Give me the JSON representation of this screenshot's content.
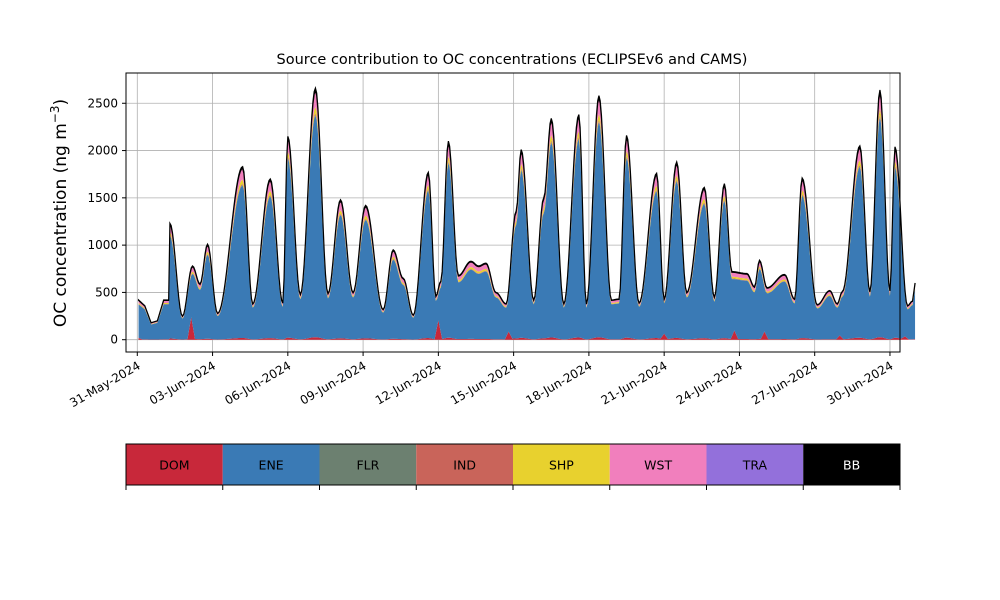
{
  "chart_data": {
    "type": "area",
    "title": "Source contribution to OC concentrations (ECLIPSEv6 and CAMS)",
    "ylabel": "OC concentration (ng m⁻³)",
    "ylabel_parts": {
      "main": "OC concentration (ng m",
      "sup": "−3",
      "close": ")"
    },
    "xlabel": "",
    "ylim": [
      -130,
      2820
    ],
    "xlim_days": [
      -0.45,
      30.4
    ],
    "yticks": [
      0,
      500,
      1000,
      1500,
      2000,
      2500
    ],
    "ytick_labels": [
      "0",
      "500",
      "1000",
      "1500",
      "2000",
      "2500"
    ],
    "xticks_days": [
      0,
      3,
      6,
      9,
      12,
      15,
      18,
      21,
      24,
      27,
      30
    ],
    "xtick_labels": [
      "31-May-2024",
      "03-Jun-2024",
      "06-Jun-2024",
      "09-Jun-2024",
      "12-Jun-2024",
      "15-Jun-2024",
      "18-Jun-2024",
      "21-Jun-2024",
      "24-Jun-2024",
      "27-Jun-2024",
      "30-Jun-2024"
    ],
    "x_unit": "days since 31-May-2024 00:00",
    "grid": true,
    "peaks": [
      [
        1.3,
        1230
      ],
      [
        1.8,
        250
      ],
      [
        2.2,
        780
      ],
      [
        2.5,
        590
      ],
      [
        2.8,
        1010
      ],
      [
        3.2,
        280
      ],
      [
        4.2,
        1830
      ],
      [
        4.6,
        380
      ],
      [
        5.3,
        1700
      ],
      [
        5.8,
        390
      ],
      [
        6.0,
        2150
      ],
      [
        6.5,
        480
      ],
      [
        7.1,
        2660
      ],
      [
        7.6,
        490
      ],
      [
        8.1,
        1480
      ],
      [
        8.6,
        500
      ],
      [
        9.1,
        1420
      ],
      [
        9.8,
        320
      ],
      [
        10.2,
        950
      ],
      [
        10.6,
        650
      ],
      [
        11.0,
        260
      ],
      [
        11.6,
        1770
      ],
      [
        11.9,
        460
      ],
      [
        12.1,
        620
      ],
      [
        12.4,
        2100
      ],
      [
        12.8,
        680
      ],
      [
        13.3,
        830
      ],
      [
        13.6,
        780
      ],
      [
        13.9,
        810
      ],
      [
        14.3,
        500
      ],
      [
        14.7,
        380
      ],
      [
        15.1,
        1360
      ],
      [
        15.3,
        2010
      ],
      [
        15.8,
        420
      ],
      [
        16.2,
        1500
      ],
      [
        16.5,
        2340
      ],
      [
        17.0,
        380
      ],
      [
        17.6,
        2380
      ],
      [
        17.9,
        380
      ],
      [
        18.4,
        2580
      ],
      [
        18.9,
        420
      ],
      [
        19.2,
        430
      ],
      [
        19.5,
        2160
      ],
      [
        20.0,
        390
      ],
      [
        20.7,
        1760
      ],
      [
        21.0,
        430
      ],
      [
        21.5,
        1880
      ],
      [
        21.9,
        500
      ],
      [
        22.6,
        1610
      ],
      [
        23.0,
        450
      ],
      [
        23.4,
        1650
      ],
      [
        23.7,
        720
      ],
      [
        24.3,
        700
      ],
      [
        24.6,
        560
      ],
      [
        24.8,
        840
      ],
      [
        25.1,
        550
      ],
      [
        25.8,
        690
      ],
      [
        26.2,
        430
      ],
      [
        26.5,
        1710
      ],
      [
        27.1,
        370
      ],
      [
        27.6,
        520
      ],
      [
        27.9,
        380
      ],
      [
        28.1,
        510
      ],
      [
        28.8,
        2050
      ],
      [
        29.2,
        510
      ],
      [
        29.6,
        2640
      ],
      [
        30.0,
        520
      ],
      [
        30.2,
        2040
      ],
      [
        30.7,
        360
      ],
      [
        30.9,
        410
      ],
      [
        31.0,
        600
      ]
    ],
    "series": [
      {
        "name": "DOM",
        "color": "#c8283a",
        "fraction": 0.01,
        "spikes": [
          [
            0.05,
            15
          ],
          [
            2.15,
            230
          ],
          [
            12.0,
            200
          ],
          [
            14.8,
            80
          ],
          [
            21.0,
            60
          ],
          [
            23.8,
            90
          ],
          [
            25.0,
            80
          ],
          [
            28.0,
            40
          ],
          [
            30.6,
            30
          ]
        ]
      },
      {
        "name": "ENE",
        "color": "#3a7ab5",
        "fraction": 0.88
      },
      {
        "name": "FLR",
        "color": "#6c8070",
        "fraction": 0.004
      },
      {
        "name": "IND",
        "color": "#c9645a",
        "fraction": 0.006
      },
      {
        "name": "SHP",
        "color": "#e8d12e",
        "fraction": 0.025
      },
      {
        "name": "WST",
        "color": "#f17fbd",
        "fraction": 0.06
      },
      {
        "name": "TRA",
        "color": "#9370db",
        "fraction": 0.005
      },
      {
        "name": "BB",
        "color": "#000000",
        "fraction": 0.01
      }
    ],
    "legend_placement": "below-chart"
  },
  "legend": [
    {
      "label": "DOM",
      "color": "#c8283a",
      "text_color": "#000000"
    },
    {
      "label": "ENE",
      "color": "#3a7ab5",
      "text_color": "#000000"
    },
    {
      "label": "FLR",
      "color": "#6c8070",
      "text_color": "#000000"
    },
    {
      "label": "IND",
      "color": "#c9645a",
      "text_color": "#000000"
    },
    {
      "label": "SHP",
      "color": "#e8d12e",
      "text_color": "#000000"
    },
    {
      "label": "WST",
      "color": "#f17fbd",
      "text_color": "#000000"
    },
    {
      "label": "TRA",
      "color": "#9370db",
      "text_color": "#000000"
    },
    {
      "label": "BB",
      "color": "#000000",
      "text_color": "#ffffff"
    }
  ]
}
